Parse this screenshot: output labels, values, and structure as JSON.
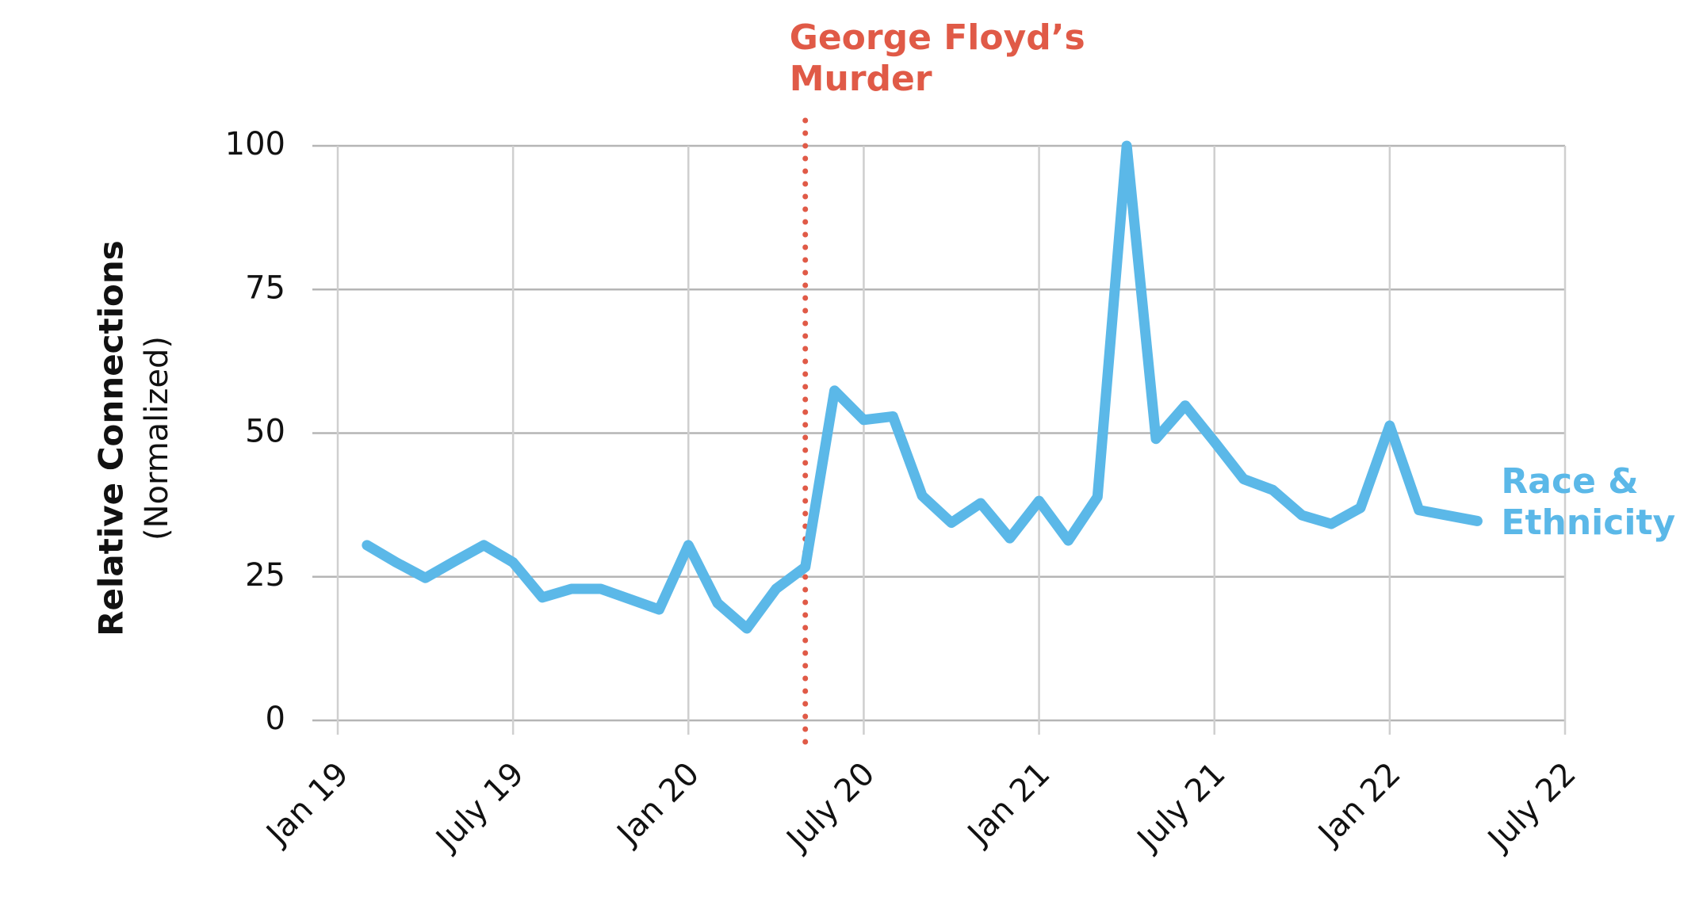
{
  "chart_data": {
    "type": "line",
    "ylabel": "Relative Connections",
    "ylabel_note": "(Normalized)",
    "x": [
      "2019-02",
      "2019-03",
      "2019-04",
      "2019-05",
      "2019-06",
      "2019-07",
      "2019-08",
      "2019-09",
      "2019-10",
      "2019-12",
      "2020-01",
      "2020-02",
      "2020-03",
      "2020-04",
      "2020-05",
      "2020-06",
      "2020-07",
      "2020-08",
      "2020-09",
      "2020-10",
      "2020-11",
      "2020-12",
      "2021-01",
      "2021-02",
      "2021-03",
      "2021-04",
      "2021-05",
      "2021-06",
      "2021-07",
      "2021-08",
      "2021-09",
      "2021-10",
      "2021-11",
      "2021-12",
      "2022-01",
      "2022-02",
      "2022-04"
    ],
    "series": [
      {
        "name": "Race & Ethnicity",
        "color": "#5bb8e8",
        "values": [
          30.5,
          27.5,
          24.8,
          27.7,
          30.5,
          27.5,
          21.4,
          22.9,
          22.9,
          19.3,
          30.5,
          20.4,
          16,
          22.9,
          26.7,
          57.4,
          52.3,
          52.9,
          39.1,
          34.4,
          37.8,
          31.7,
          38.2,
          31.3,
          38.9,
          100,
          49,
          54.8,
          48.5,
          42,
          40.1,
          35.7,
          34.2,
          37,
          51.3,
          36.6,
          34.7
        ]
      }
    ],
    "xlim": [
      "2019-01",
      "2022-07"
    ],
    "xticks": [
      {
        "value": "2019-01",
        "label": "Jan 19"
      },
      {
        "value": "2019-07",
        "label": "July 19"
      },
      {
        "value": "2020-01",
        "label": "Jan 20"
      },
      {
        "value": "2020-07",
        "label": "July 20"
      },
      {
        "value": "2021-01",
        "label": "Jan 21"
      },
      {
        "value": "2021-07",
        "label": "July 21"
      },
      {
        "value": "2022-01",
        "label": "Jan 22"
      },
      {
        "value": "2022-07",
        "label": "July 22"
      }
    ],
    "ylim": [
      0,
      100
    ],
    "yticks": [
      0,
      25,
      50,
      75,
      100
    ],
    "grid": true,
    "annotations": [
      {
        "text": "George Floyd’s Murder",
        "x": "2020-05",
        "color": "#e05a47"
      }
    ]
  }
}
